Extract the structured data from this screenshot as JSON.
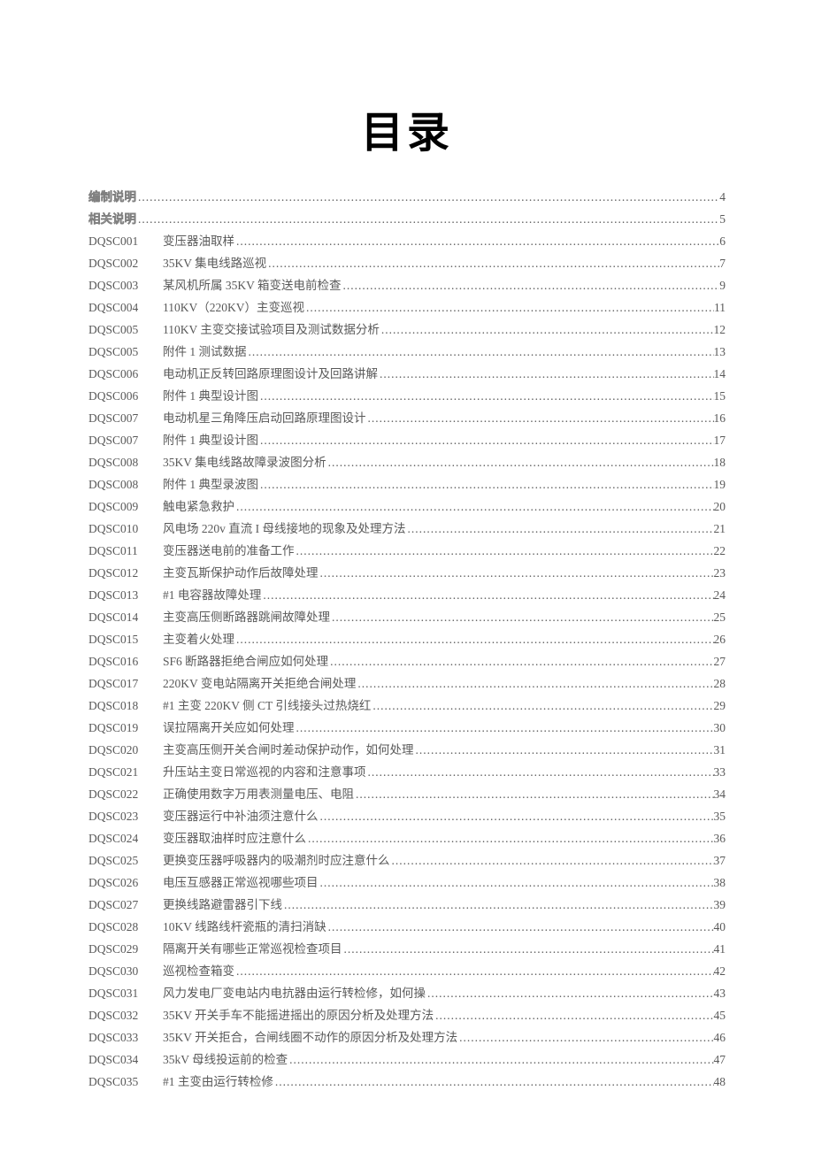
{
  "title": "目录",
  "entries": [
    {
      "code": "",
      "title": "编制说明",
      "page": "4",
      "outlined": true,
      "noCode": true
    },
    {
      "code": "",
      "title": "相关说明",
      "page": "5",
      "outlined": true,
      "noCode": true
    },
    {
      "code": "DQSC001",
      "title": "变压器油取样",
      "page": "6"
    },
    {
      "code": "DQSC002",
      "title": "35KV 集电线路巡视",
      "page": "7"
    },
    {
      "code": "DQSC003",
      "title": "某风机所属 35KV 箱变送电前检查",
      "page": "9"
    },
    {
      "code": "DQSC004",
      "title": "110KV（220KV）主变巡视",
      "page": "11"
    },
    {
      "code": "DQSC005",
      "title": "110KV 主变交接试验项目及测试数据分析",
      "page": "12"
    },
    {
      "code": "DQSC005",
      "title": "附件 1   测试数据",
      "page": "13"
    },
    {
      "code": "DQSC006",
      "title": "电动机正反转回路原理图设计及回路讲解",
      "page": "14"
    },
    {
      "code": "DQSC006",
      "title": "附件 1  典型设计图",
      "page": "15"
    },
    {
      "code": "DQSC007",
      "title": "电动机星三角降压启动回路原理图设计",
      "page": "16"
    },
    {
      "code": "DQSC007",
      "title": "附件 1  典型设计图",
      "page": "17"
    },
    {
      "code": "DQSC008",
      "title": "35KV 集电线路故障录波图分析",
      "page": "18"
    },
    {
      "code": "DQSC008",
      "title": "附件 1  典型录波图",
      "page": "19"
    },
    {
      "code": "DQSC009",
      "title": "触电紧急救护",
      "page": "20"
    },
    {
      "code": "DQSC010",
      "title": "风电场 220v 直流 I 母线接地的现象及处理方法",
      "page": "21"
    },
    {
      "code": "DQSC011",
      "title": "变压器送电前的准备工作",
      "page": "22"
    },
    {
      "code": "DQSC012",
      "title": "主变瓦斯保护动作后故障处理",
      "page": "23"
    },
    {
      "code": "DQSC013",
      "title": "#1 电容器故障处理",
      "page": "24"
    },
    {
      "code": "DQSC014",
      "title": "主变高压侧断路器跳闸故障处理",
      "page": "25"
    },
    {
      "code": "DQSC015",
      "title": "主变着火处理",
      "page": "26"
    },
    {
      "code": "DQSC016",
      "title": "SF6 断路器拒绝合闸应如何处理",
      "page": "27"
    },
    {
      "code": "DQSC017",
      "title": "220KV 变电站隔离开关拒绝合闸处理",
      "page": "28"
    },
    {
      "code": "DQSC018",
      "title": "#1 主变 220KV 侧 CT 引线接头过热烧红",
      "page": "29"
    },
    {
      "code": "DQSC019",
      "title": "误拉隔离开关应如何处理",
      "page": "30"
    },
    {
      "code": "DQSC020",
      "title": "主变高压侧开关合闸时差动保护动作，如何处理",
      "page": "31"
    },
    {
      "code": "DQSC021",
      "title": "升压站主变日常巡视的内容和注意事项",
      "page": "33"
    },
    {
      "code": "DQSC022",
      "title": "正确使用数字万用表测量电压、电阻",
      "page": "34"
    },
    {
      "code": "DQSC023",
      "title": "变压器运行中补油须注意什么",
      "page": "35"
    },
    {
      "code": "DQSC024",
      "title": "变压器取油样时应注意什么",
      "page": "36"
    },
    {
      "code": "DQSC025",
      "title": "更换变压器呼吸器内的吸潮剂时应注意什么",
      "page": "37"
    },
    {
      "code": "DQSC026",
      "title": "电压互感器正常巡视哪些项目",
      "page": "38"
    },
    {
      "code": "DQSC027",
      "title": "更换线路避雷器引下线",
      "page": "39"
    },
    {
      "code": "DQSC028",
      "title": "10KV 线路线杆瓷瓶的清扫消缺",
      "page": "40"
    },
    {
      "code": "DQSC029",
      "title": "隔离开关有哪些正常巡视检查项目",
      "page": "41"
    },
    {
      "code": "DQSC030",
      "title": "巡视检查箱变",
      "page": "42"
    },
    {
      "code": "DQSC031",
      "title": "风力发电厂变电站内电抗器由运行转检修，如何操",
      "page": "43"
    },
    {
      "code": "DQSC032",
      "title": "35KV 开关手车不能摇进摇出的原因分析及处理方法",
      "page": "45"
    },
    {
      "code": "DQSC033",
      "title": "35KV 开关拒合，合闸线圈不动作的原因分析及处理方法",
      "page": "46"
    },
    {
      "code": "DQSC034",
      "title": "35kV 母线投运前的检查",
      "page": "47"
    },
    {
      "code": "DQSC035",
      "title": "#1 主变由运行转检修",
      "page": "48"
    }
  ]
}
